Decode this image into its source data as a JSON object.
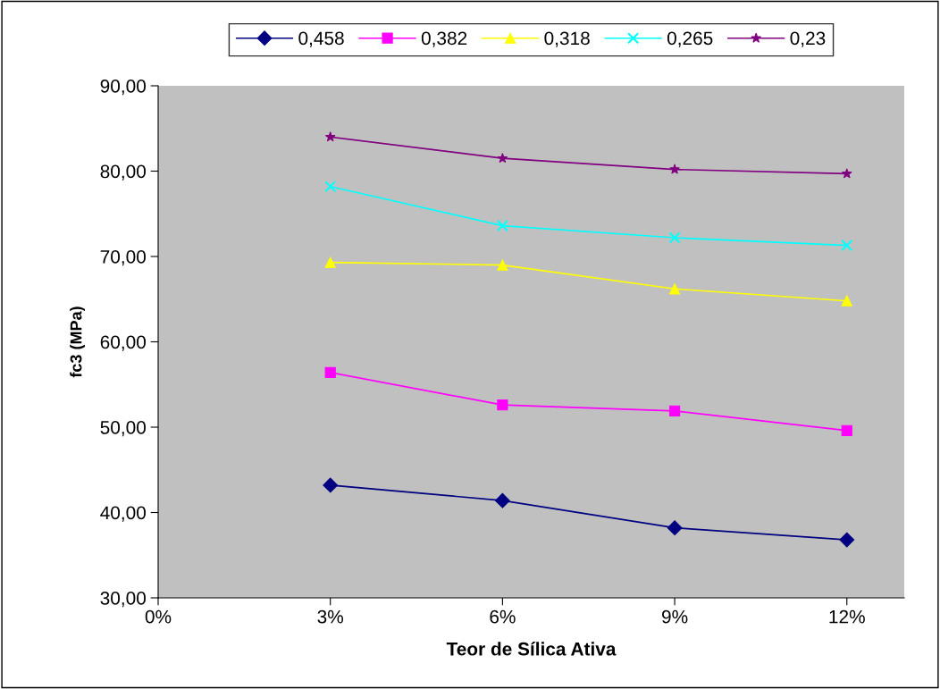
{
  "chart_data": {
    "type": "line",
    "xlabel": "Teor de Sílica Ativa",
    "ylabel": "fc3 (MPa)",
    "x": [
      3,
      6,
      9,
      12
    ],
    "xlim": [
      0,
      13
    ],
    "xticks": [
      {
        "value": 0,
        "label": "0%"
      },
      {
        "value": 3,
        "label": "3%"
      },
      {
        "value": 6,
        "label": "6%"
      },
      {
        "value": 9,
        "label": "9%"
      },
      {
        "value": 12,
        "label": "12%"
      }
    ],
    "ylim": [
      30,
      90
    ],
    "yticks": [
      {
        "value": 30,
        "label": "30,00"
      },
      {
        "value": 40,
        "label": "40,00"
      },
      {
        "value": 50,
        "label": "50,00"
      },
      {
        "value": 60,
        "label": "60,00"
      },
      {
        "value": 70,
        "label": "70,00"
      },
      {
        "value": 80,
        "label": "80,00"
      },
      {
        "value": 90,
        "label": "90,00"
      }
    ],
    "grid": false,
    "legend": "top",
    "line_style": "solid",
    "series": [
      {
        "name": "0,458",
        "color": "#000080",
        "marker": "diamond",
        "values": [
          43.2,
          41.4,
          38.2,
          36.8
        ]
      },
      {
        "name": "0,382",
        "color": "#ff00ff",
        "marker": "square",
        "values": [
          56.4,
          52.6,
          51.9,
          49.6
        ]
      },
      {
        "name": "0,318",
        "color": "#ffff00",
        "marker": "triangle",
        "values": [
          69.3,
          69.0,
          66.2,
          64.8
        ]
      },
      {
        "name": "0,265",
        "color": "#00ffff",
        "marker": "cross",
        "values": [
          78.2,
          73.6,
          72.2,
          71.3
        ]
      },
      {
        "name": "0,23",
        "color": "#800080",
        "marker": "star",
        "values": [
          84.0,
          81.5,
          80.2,
          79.7
        ]
      }
    ]
  }
}
